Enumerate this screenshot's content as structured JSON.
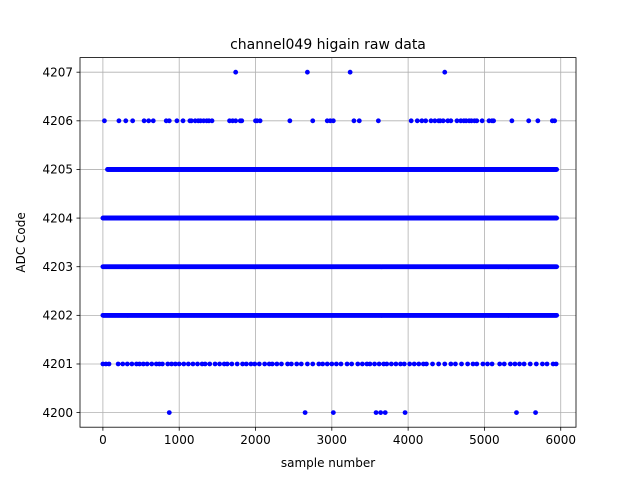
{
  "chart_data": {
    "type": "scatter",
    "title": "channel049 higain raw data",
    "xlabel": "sample number",
    "ylabel": "ADC Code",
    "xlim": [
      -300,
      6200
    ],
    "ylim": [
      4199.7,
      4207.3
    ],
    "xticks": [
      0,
      1000,
      2000,
      3000,
      4000,
      5000,
      6000
    ],
    "yticks": [
      4200,
      4201,
      4202,
      4203,
      4204,
      4205,
      4206,
      4207
    ],
    "grid": true,
    "marker_color": "#0000ff",
    "total_samples": 5950,
    "dense_levels": [
      {
        "y": 4205,
        "x_start": 60,
        "x_end": 5950
      },
      {
        "y": 4204,
        "x_start": 0,
        "x_end": 5950
      },
      {
        "y": 4203,
        "x_start": 0,
        "x_end": 5950
      },
      {
        "y": 4202,
        "x_start": 0,
        "x_end": 5950
      }
    ],
    "series": [
      {
        "y": 4207,
        "x": [
          1740,
          2680,
          3240,
          4480
        ]
      },
      {
        "y": 4206,
        "x": [
          20,
          210,
          300,
          390,
          540,
          600,
          660,
          830,
          870,
          970,
          1050,
          1140,
          1160,
          1210,
          1250,
          1280,
          1320,
          1360,
          1390,
          1430,
          1660,
          1700,
          1740,
          1800,
          1820,
          2000,
          2020,
          2060,
          2450,
          2750,
          2940,
          2980,
          3020,
          3290,
          3360,
          3610,
          4040,
          4120,
          4180,
          4230,
          4300,
          4350,
          4400,
          4420,
          4460,
          4520,
          4560,
          4640,
          4690,
          4730,
          4760,
          4800,
          4830,
          4870,
          4900,
          4970,
          5060,
          5100,
          5120,
          5360,
          5580,
          5700,
          5890,
          5920
        ]
      },
      {
        "y": 4201,
        "x": [
          0,
          40,
          80,
          200,
          260,
          320,
          380,
          440,
          480,
          530,
          580,
          640,
          700,
          740,
          780,
          850,
          900,
          950,
          1000,
          1060,
          1120,
          1180,
          1240,
          1300,
          1340,
          1400,
          1470,
          1530,
          1590,
          1630,
          1690,
          1760,
          1830,
          1880,
          1940,
          1990,
          2050,
          2120,
          2180,
          2220,
          2280,
          2340,
          2420,
          2470,
          2540,
          2600,
          2680,
          2750,
          2830,
          2880,
          2940,
          3000,
          3060,
          3120,
          3200,
          3260,
          3340,
          3400,
          3460,
          3500,
          3560,
          3620,
          3680,
          3720,
          3780,
          3840,
          3900,
          3950,
          4020,
          4080,
          4140,
          4200,
          4240,
          4320,
          4400,
          4480,
          4560,
          4620,
          4700,
          4780,
          4850,
          4900,
          4980,
          5040,
          5100,
          5200,
          5260,
          5340,
          5400,
          5460,
          5520,
          5600,
          5680,
          5760,
          5820,
          5900,
          5940
        ]
      },
      {
        "y": 4200,
        "x": [
          870,
          2650,
          3020,
          3580,
          3640,
          3700,
          3960,
          5420,
          5670
        ]
      }
    ]
  }
}
